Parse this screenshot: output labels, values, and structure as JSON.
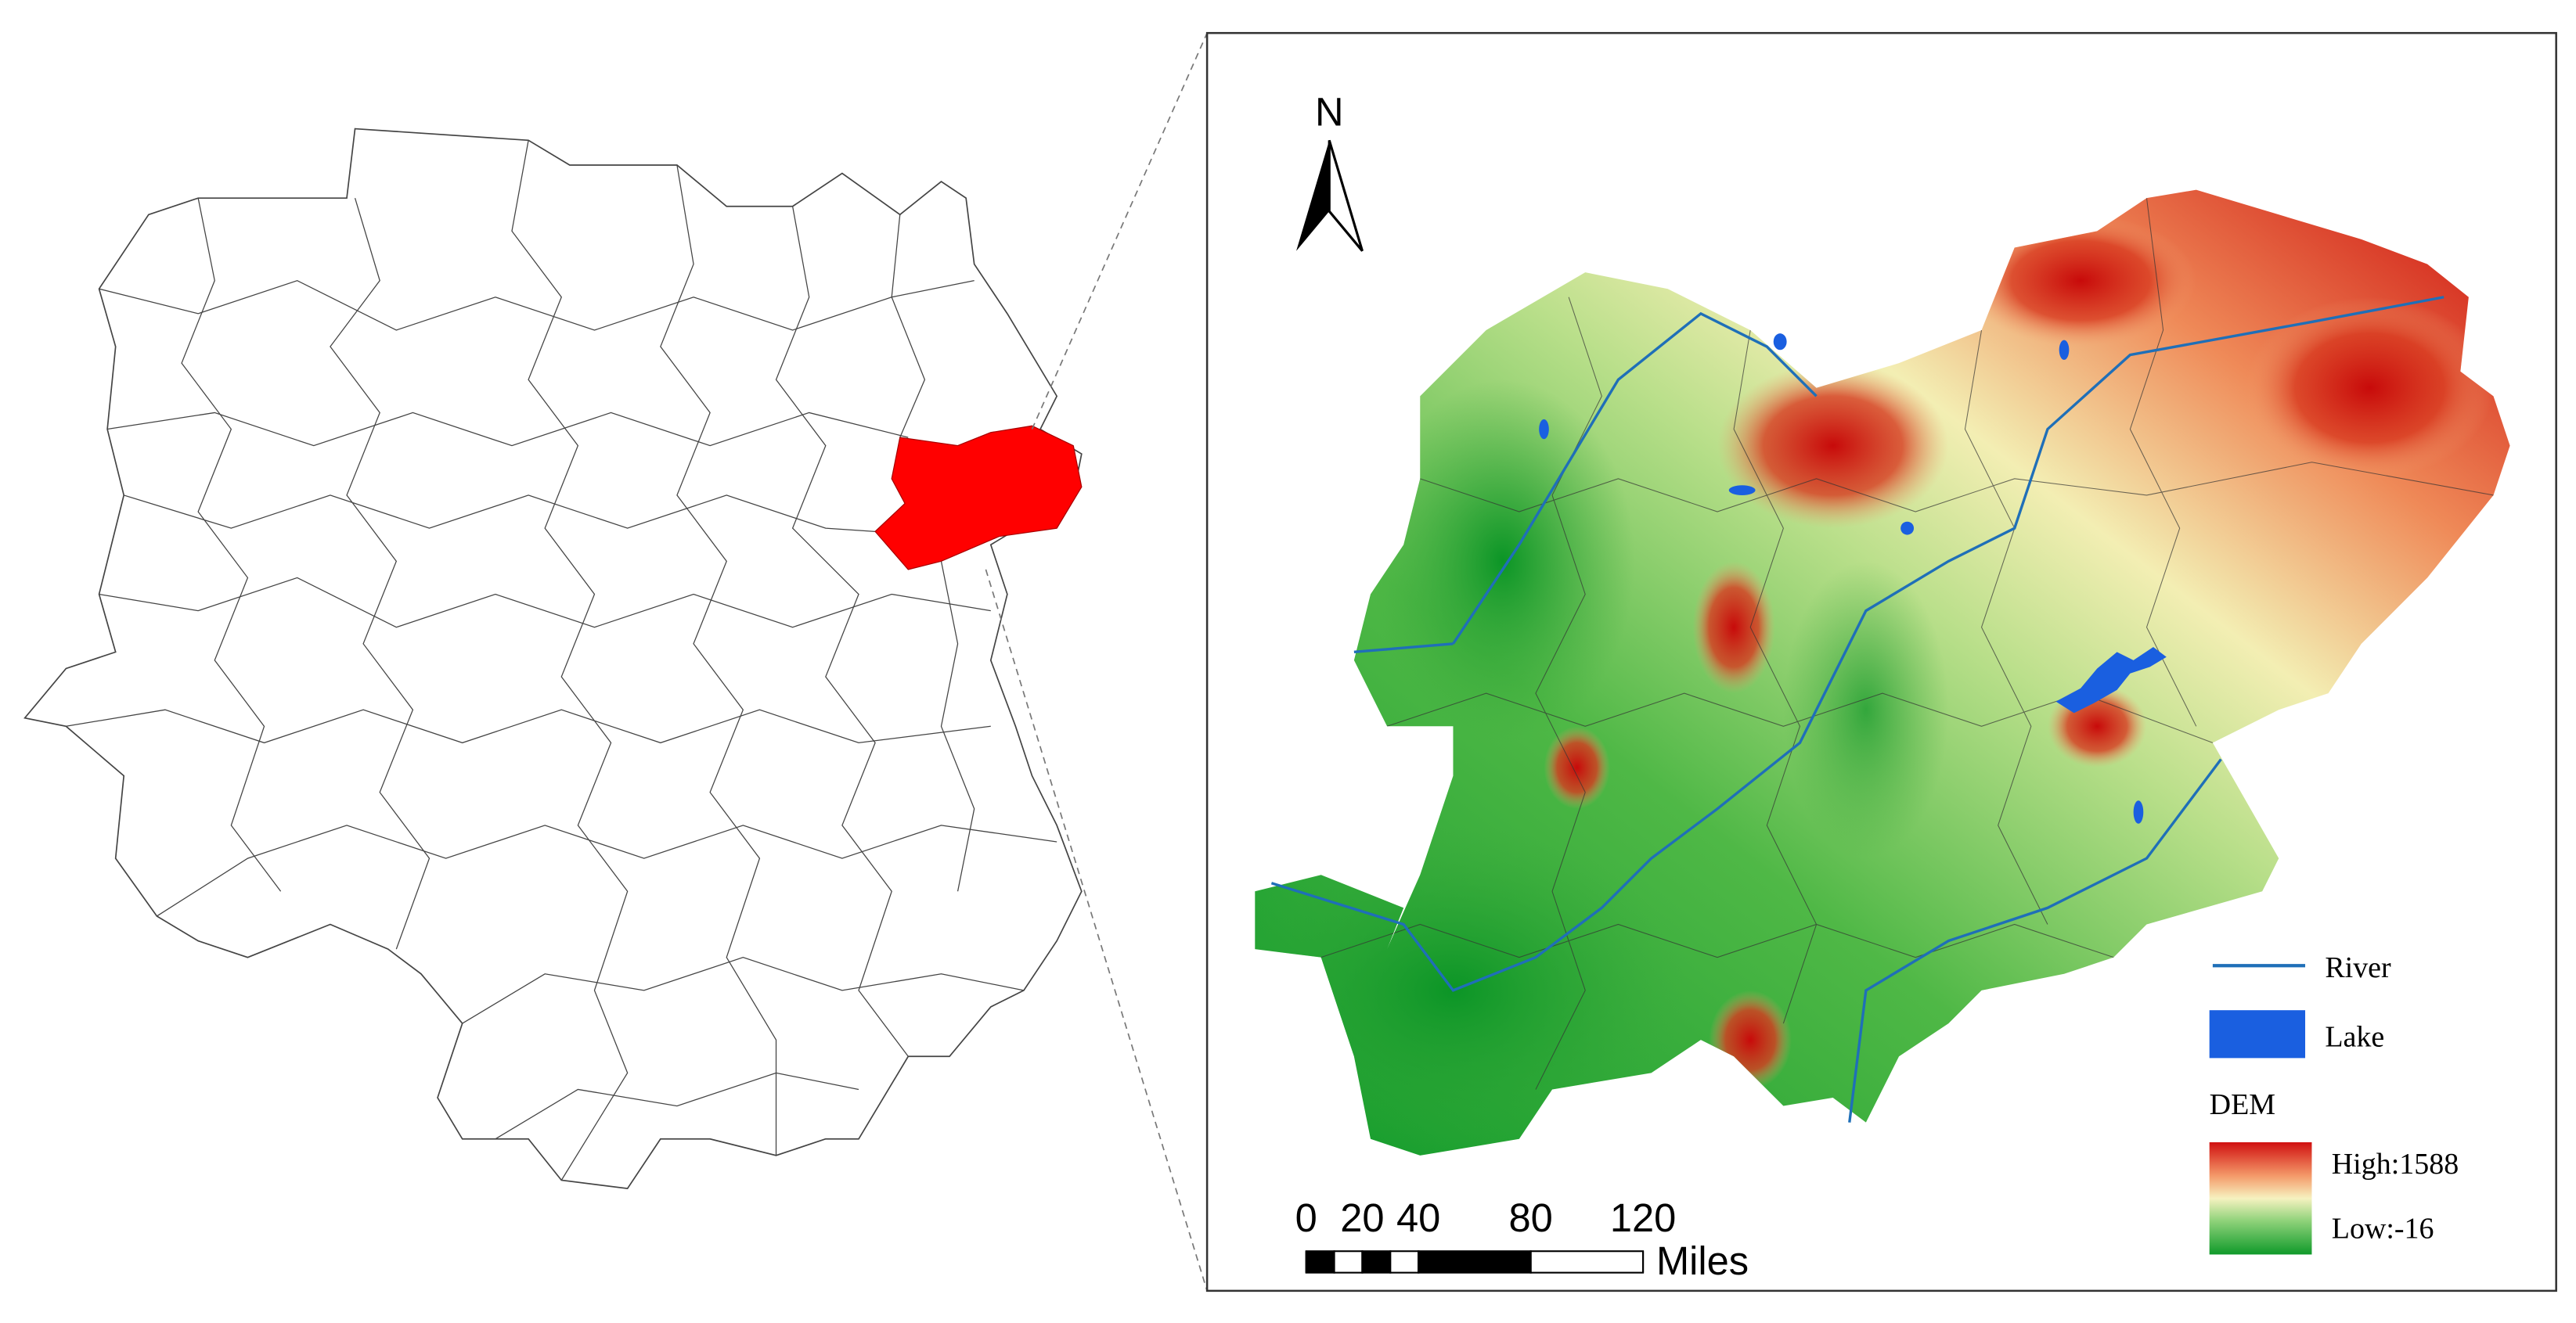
{
  "north_arrow": {
    "label": "N"
  },
  "scale_bar": {
    "ticks": [
      0,
      20,
      40,
      80,
      120
    ],
    "unit": "Miles"
  },
  "legend": {
    "river": "River",
    "lake": "Lake",
    "dem_title": "DEM",
    "dem_high": "High:1588",
    "dem_low": "Low:-16"
  }
}
